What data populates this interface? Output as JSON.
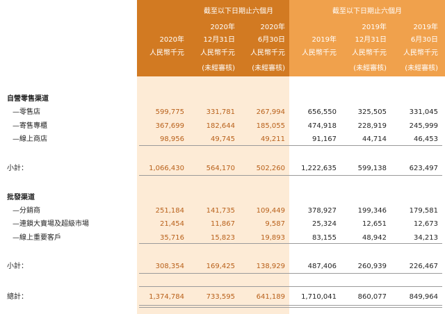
{
  "header": {
    "period_titles": [
      "截至以下日期止六個月",
      "截至以下日期止六個月"
    ],
    "columns": [
      {
        "lines": [
          "2020年",
          "人民幣千元"
        ]
      },
      {
        "lines": [
          "2020年",
          "12月31日",
          "人民幣千元",
          "(未經審核)"
        ]
      },
      {
        "lines": [
          "2020年",
          "6月30日",
          "人民幣千元",
          "(未經審核)"
        ]
      },
      {
        "lines": [
          "2019年",
          "人民幣千元"
        ]
      },
      {
        "lines": [
          "2019年",
          "12月31日",
          "人民幣千元",
          "(未經審核)"
        ]
      },
      {
        "lines": [
          "2019年",
          "6月30日",
          "人民幣千元",
          "(未經審核)"
        ]
      }
    ]
  },
  "sections": [
    {
      "title": "自營零售渠道",
      "rows": [
        {
          "label": "—零售店",
          "values": [
            "599,775",
            "331,781",
            "267,994",
            "656,550",
            "325,505",
            "331,045"
          ]
        },
        {
          "label": "—寄售專櫃",
          "values": [
            "367,699",
            "182,644",
            "185,055",
            "474,918",
            "228,919",
            "245,999"
          ]
        },
        {
          "label": "—線上商店",
          "values": [
            "98,956",
            "49,745",
            "49,211",
            "91,167",
            "44,714",
            "46,453"
          ]
        }
      ],
      "subtotal": {
        "label": "小計：",
        "values": [
          "1,066,430",
          "564,170",
          "502,260",
          "1,222,635",
          "599,138",
          "623,497"
        ]
      }
    },
    {
      "title": "批發渠道",
      "rows": [
        {
          "label": "—分銷商",
          "values": [
            "251,184",
            "141,735",
            "109,449",
            "378,927",
            "199,346",
            "179,581"
          ]
        },
        {
          "label": "—連鎖大賣場及超級市場",
          "values": [
            "21,454",
            "11,867",
            "9,587",
            "25,324",
            "12,651",
            "12,673"
          ]
        },
        {
          "label": "—線上重要客戶",
          "values": [
            "35,716",
            "15,823",
            "19,893",
            "83,155",
            "48,942",
            "34,213"
          ]
        }
      ],
      "subtotal": {
        "label": "小計：",
        "values": [
          "308,354",
          "169,425",
          "138,929",
          "487,406",
          "260,939",
          "226,467"
        ]
      }
    }
  ],
  "total": {
    "label": "總計：",
    "values": [
      "1,374,784",
      "733,595",
      "641,189",
      "1,710,041",
      "860,077",
      "849,964"
    ]
  }
}
